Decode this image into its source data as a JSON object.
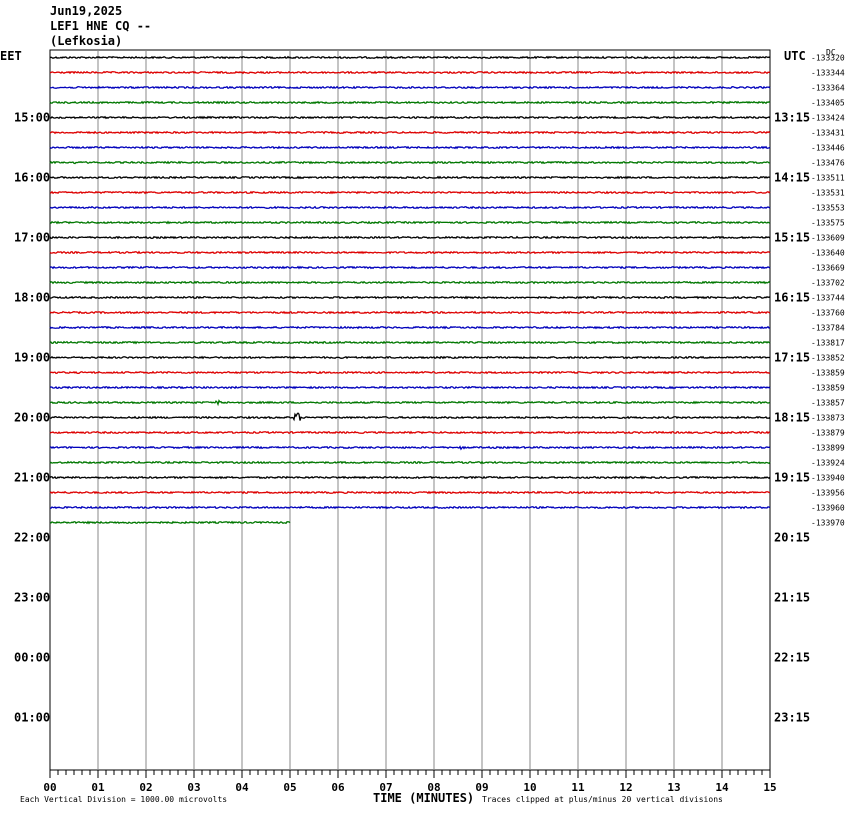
{
  "header": {
    "date": "Jun19,2025",
    "station": "LEF1 HNE CQ --",
    "location": "(Lefkosia)"
  },
  "chart_data": {
    "type": "line",
    "title": "Jun19,2025",
    "left_axis_label": "EET",
    "right_axis_label": "UTC",
    "dc_label": "DC",
    "left_hour_labels": [
      "15:00",
      "16:00",
      "17:00",
      "18:00",
      "19:00",
      "20:00",
      "21:00",
      "22:00",
      "23:00",
      "00:00",
      "01:00"
    ],
    "right_hour_labels": [
      "13:15",
      "14:15",
      "15:15",
      "16:15",
      "17:15",
      "18:15",
      "19:15",
      "20:15",
      "21:15",
      "22:15",
      "23:15"
    ],
    "xlabel": "TIME (MINUTES)",
    "x_ticks": [
      "00",
      "01",
      "02",
      "03",
      "04",
      "05",
      "06",
      "07",
      "08",
      "09",
      "10",
      "11",
      "12",
      "13",
      "14",
      "15"
    ],
    "xlim": [
      0,
      15
    ],
    "rows_per_hour": 4,
    "total_rows": 48,
    "trace_colors": [
      "#000000",
      "#dd0000",
      "#0000bb",
      "#007700"
    ],
    "dc_offsets": [
      "-133320",
      "-133344",
      "-133364",
      "-133405",
      "-133424",
      "-133431",
      "-133446",
      "-133476",
      "-133511",
      "-133531",
      "-133553",
      "-133575",
      "-133609",
      "-133640",
      "-133669",
      "-133702",
      "-133744",
      "-133760",
      "-133784",
      "-133817",
      "-133852",
      "-133859",
      "-133859",
      "-133857",
      "-133873",
      "-133879",
      "-133899",
      "-133924",
      "-133940",
      "-133956",
      "-133960",
      "-133970"
    ],
    "last_trace_end_minute": 5,
    "events": [
      {
        "row": 23,
        "minute": 3.5,
        "amplitude": 2.5
      },
      {
        "row": 24,
        "minute": 5.15,
        "amplitude": 6
      },
      {
        "row": 26,
        "minute": 8.6,
        "amplitude": 2.5
      },
      {
        "row": 7,
        "minute": 0.5,
        "amplitude": 1.5
      }
    ],
    "footer_left": "Each Vertical Division = 1000.00 microvolts",
    "footer_right": "Traces clipped at plus/minus 20 vertical divisions"
  }
}
